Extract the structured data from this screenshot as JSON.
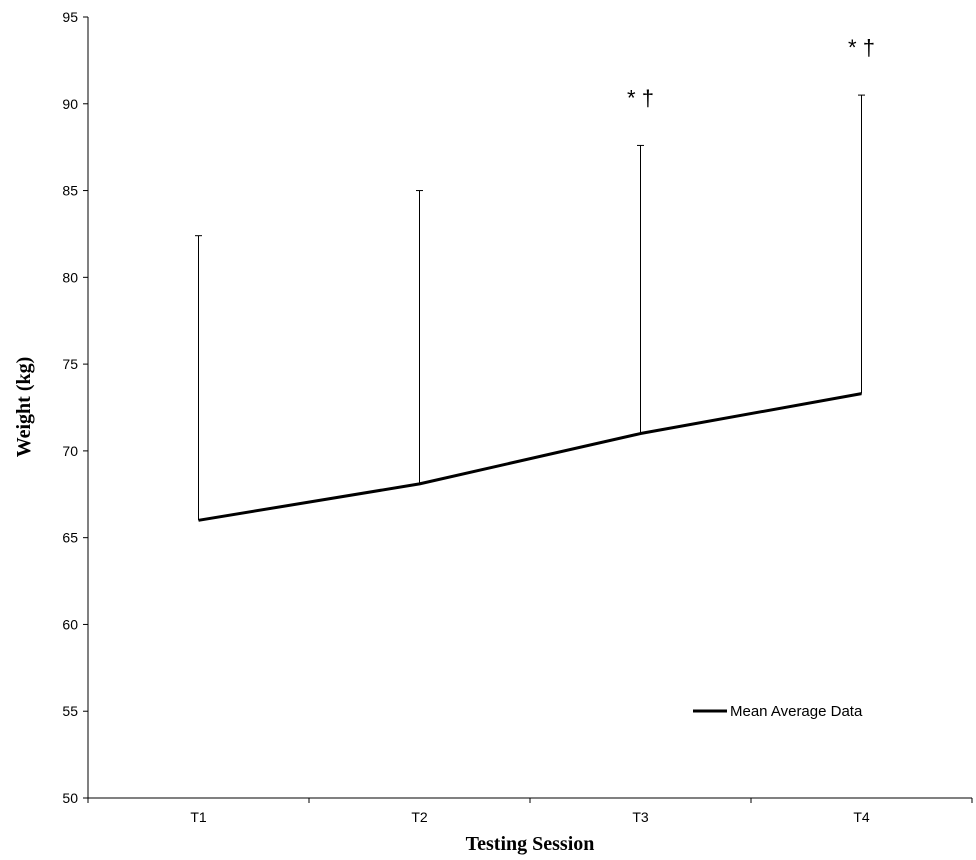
{
  "chart_data": {
    "type": "line",
    "title": "",
    "xlabel": "Testing Session",
    "ylabel": "Weight (kg)",
    "ylim": [
      50,
      95
    ],
    "yticks": [
      50,
      55,
      60,
      65,
      70,
      75,
      80,
      85,
      90,
      95
    ],
    "categories": [
      "T1",
      "T2",
      "T3",
      "T4"
    ],
    "series": [
      {
        "name": "Mean Average Data",
        "values": [
          66.0,
          68.1,
          71.0,
          73.3
        ],
        "error_upper": [
          82.4,
          85.0,
          87.6,
          90.5
        ],
        "color": "#000000"
      }
    ],
    "annotations": [
      {
        "category": "T3",
        "text": "* †"
      },
      {
        "category": "T4",
        "text": "* †"
      }
    ],
    "legend": {
      "position": "bottom-right"
    },
    "grid": false
  }
}
